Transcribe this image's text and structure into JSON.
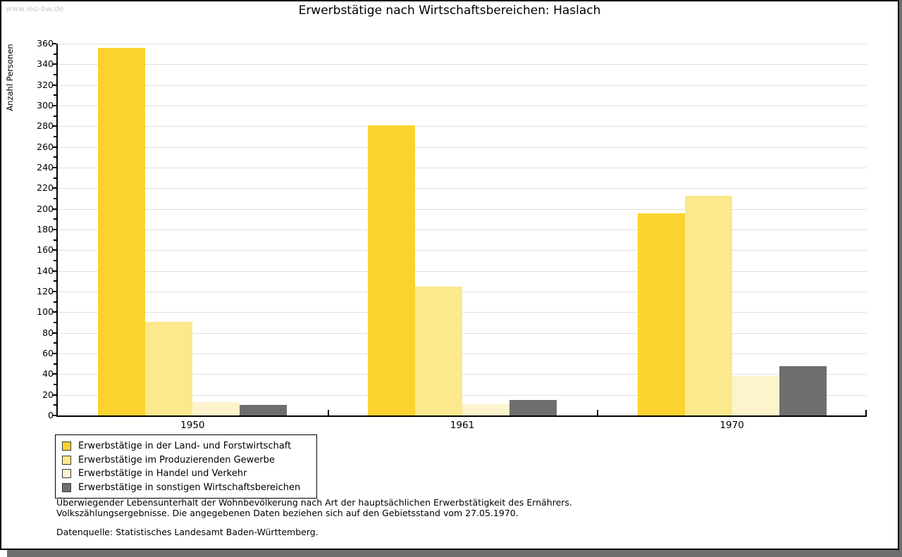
{
  "watermark": "www.leo-bw.de",
  "title": "Erwerbstätige nach Wirtschaftsbereichen: Haslach",
  "chart_data": {
    "type": "bar",
    "title": "Erwerbstätige nach Wirtschaftsbereichen: Haslach",
    "xlabel": "",
    "ylabel": "Anzahl Personen",
    "categories": [
      "1950",
      "1961",
      "1970"
    ],
    "series": [
      {
        "name": "Erwerbstätige in der Land- und Forstwirtschaft",
        "color": "#fcd32e",
        "values": [
          356,
          281,
          196
        ]
      },
      {
        "name": "Erwerbstätige im Produzierenden Gewerbe",
        "color": "#fce88d",
        "values": [
          91,
          125,
          213
        ]
      },
      {
        "name": "Erwerbstätige in Handel und Verkehr",
        "color": "#fdf3cd",
        "values": [
          13,
          11,
          38
        ]
      },
      {
        "name": "Erwerbstätige in sonstigen Wirtschaftsbereichen",
        "color": "#6e6e6e",
        "values": [
          10,
          15,
          48
        ]
      }
    ],
    "ylim": [
      0,
      360
    ],
    "ytick_step": 20,
    "yminor_step": 10,
    "grid": true,
    "gridline_color": "#e0e0e0",
    "legend_position": "bottom-left"
  },
  "footer": {
    "line1": "Überwiegender Lebensunterhalt der Wohnbevölkerung nach Art der hauptsächlichen Erwerbstätigkeit des Ernährers.",
    "line2": "Volkszählungsergebnisse. Die angegebenen Daten beziehen sich auf den Gebietsstand vom 27.05.1970.",
    "line3": "Datenquelle: Statistisches Landesamt Baden-Württemberg."
  }
}
